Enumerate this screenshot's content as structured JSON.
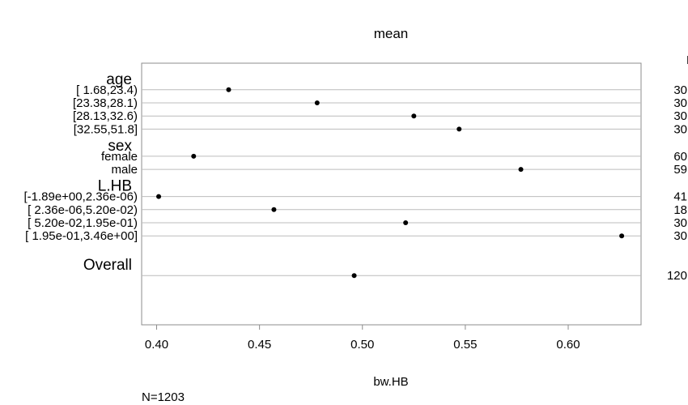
{
  "chart_data": {
    "type": "scatter",
    "title": "mean",
    "xlabel": "bw.HB",
    "footnote": "N=1203",
    "n_column_header": "N",
    "xlim": [
      0.39,
      0.635
    ],
    "xticks": [
      "0.40",
      "0.45",
      "0.50",
      "0.55",
      "0.60"
    ],
    "grid": true,
    "groups": [
      {
        "name": "age",
        "rows": [
          {
            "label": "[ 1.68,23.4)",
            "value": 0.435,
            "n": "30"
          },
          {
            "label": "[23.38,28.1)",
            "value": 0.478,
            "n": "30"
          },
          {
            "label": "[28.13,32.6)",
            "value": 0.525,
            "n": "30"
          },
          {
            "label": "[32.55,51.8]",
            "value": 0.547,
            "n": "30"
          }
        ]
      },
      {
        "name": "sex",
        "rows": [
          {
            "label": "female",
            "value": 0.418,
            "n": "60"
          },
          {
            "label": "male",
            "value": 0.577,
            "n": "59"
          }
        ]
      },
      {
        "name": "L.HB",
        "rows": [
          {
            "label": "[-1.89e+00,2.36e-06)",
            "value": 0.401,
            "n": "41"
          },
          {
            "label": "[ 2.36e-06,5.20e-02)",
            "value": 0.457,
            "n": "18"
          },
          {
            "label": "[ 5.20e-02,1.95e-01)",
            "value": 0.521,
            "n": "30"
          },
          {
            "label": "[ 1.95e-01,3.46e+00]",
            "value": 0.626,
            "n": "30"
          }
        ]
      },
      {
        "name": "Overall",
        "rows": [
          {
            "label": "",
            "value": 0.496,
            "n": "120"
          }
        ]
      }
    ]
  }
}
